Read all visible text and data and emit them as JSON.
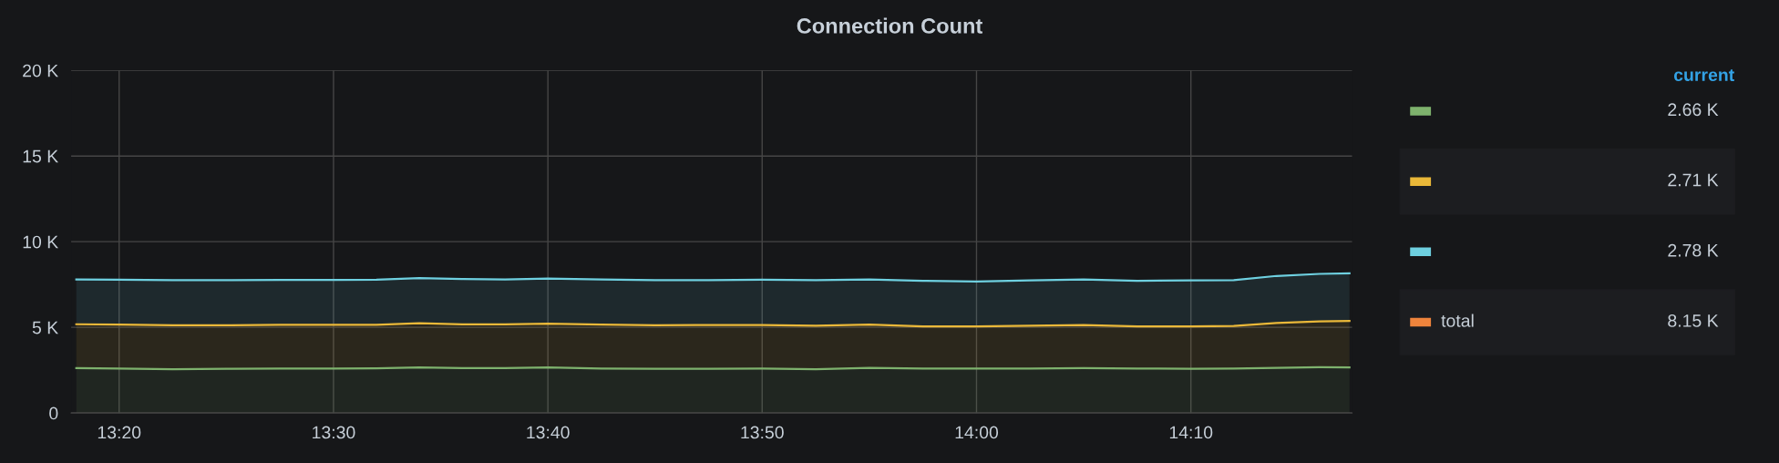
{
  "chart_data": {
    "type": "area",
    "title": "Connection Count",
    "stacked": true,
    "grid": true,
    "legend": "right",
    "legend_title": "current",
    "x": [
      13.3,
      13.3333,
      13.375,
      13.4167,
      13.4583,
      13.5,
      13.5333,
      13.5667,
      13.6,
      13.6333,
      13.6667,
      13.7083,
      13.75,
      13.7917,
      13.8333,
      13.875,
      13.9167,
      13.9583,
      14.0,
      14.0417,
      14.0833,
      14.125,
      14.1667,
      14.2,
      14.2333,
      14.2667,
      14.29
    ],
    "xlim": [
      13.296,
      14.292
    ],
    "xticks": [
      {
        "value": 13.3333,
        "label": "13:20"
      },
      {
        "value": 13.5,
        "label": "13:30"
      },
      {
        "value": 13.6667,
        "label": "13:40"
      },
      {
        "value": 13.8333,
        "label": "13:50"
      },
      {
        "value": 14.0,
        "label": "14:00"
      },
      {
        "value": 14.1667,
        "label": "14:10"
      }
    ],
    "ylim": [
      0,
      20000
    ],
    "yticks": [
      0,
      {
        "value": 5000,
        "label": "5 K"
      },
      {
        "value": 10000,
        "label": "10 K"
      },
      {
        "value": 15000,
        "label": "15 K"
      },
      {
        "value": 20000,
        "label": "20 K"
      }
    ],
    "series": [
      {
        "color": "#7eb26d",
        "values": [
          2620,
          2600,
          2560,
          2580,
          2600,
          2600,
          2610,
          2660,
          2620,
          2620,
          2660,
          2600,
          2580,
          2580,
          2600,
          2560,
          2640,
          2600,
          2600,
          2600,
          2620,
          2600,
          2580,
          2600,
          2640,
          2670,
          2660
        ]
      },
      {
        "color": "#eab839",
        "values": [
          2560,
          2560,
          2560,
          2540,
          2550,
          2550,
          2540,
          2580,
          2560,
          2550,
          2560,
          2560,
          2540,
          2560,
          2540,
          2540,
          2520,
          2460,
          2460,
          2500,
          2520,
          2460,
          2480,
          2480,
          2620,
          2680,
          2710
        ]
      },
      {
        "color": "#6ed0e0",
        "values": [
          2620,
          2620,
          2640,
          2630,
          2620,
          2620,
          2630,
          2640,
          2640,
          2630,
          2630,
          2640,
          2640,
          2620,
          2640,
          2660,
          2640,
          2660,
          2620,
          2640,
          2660,
          2660,
          2680,
          2680,
          2740,
          2770,
          2780
        ]
      },
      {
        "name": "total",
        "color": "#ef843c",
        "values": [
          null,
          null,
          null,
          null,
          null,
          null,
          null,
          null,
          null,
          null,
          null,
          null,
          null,
          null,
          null,
          null,
          null,
          null,
          null,
          null,
          null,
          null,
          null,
          null,
          null,
          null,
          null
        ]
      }
    ],
    "annotations": [
      "2.66 K",
      "2.71 K",
      "2.78 K",
      "8.15 K"
    ]
  }
}
